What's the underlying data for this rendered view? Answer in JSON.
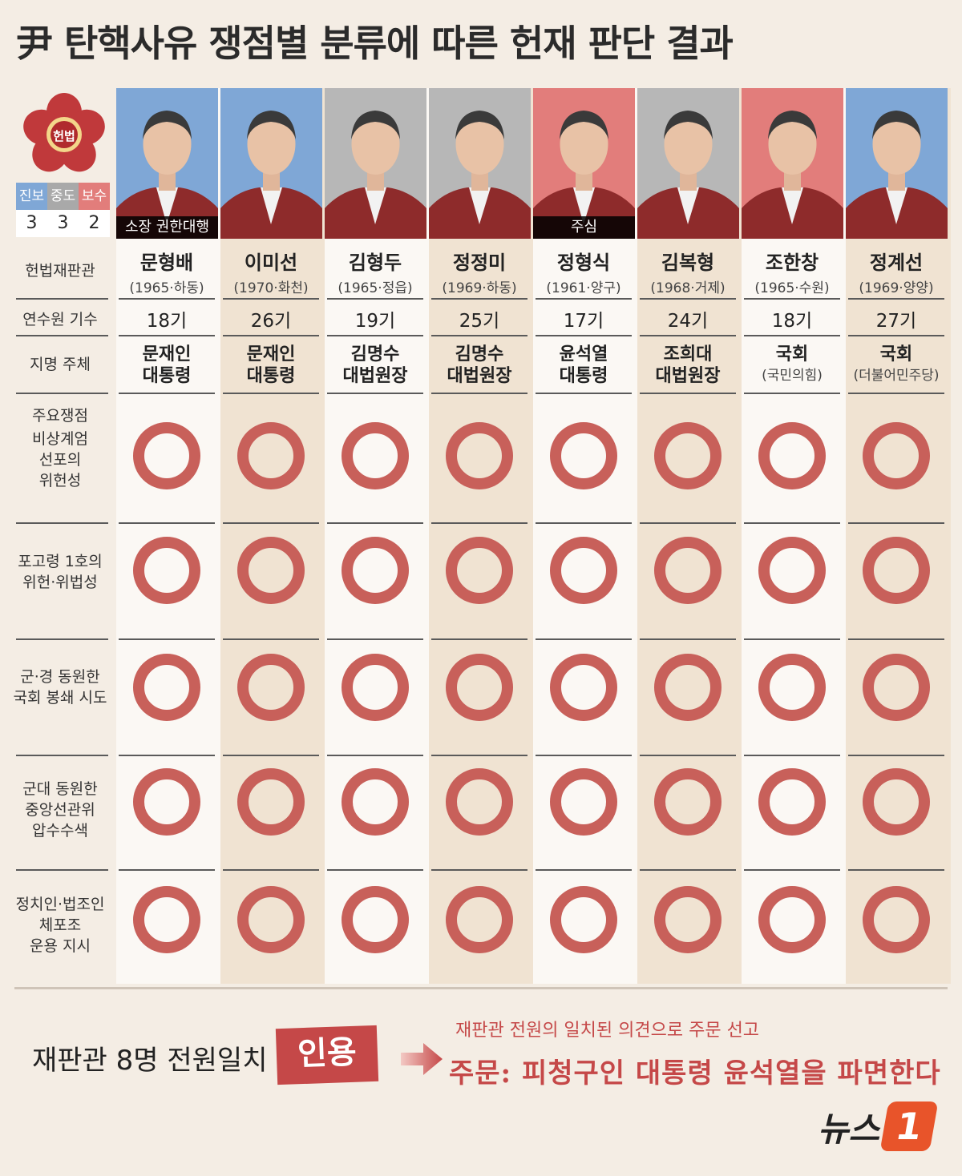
{
  "title": "尹 탄핵사유 쟁점별 분류에 따른 헌재 판단 결과",
  "emblem_text": "헌법",
  "legend": {
    "labels": [
      "진보",
      "중도",
      "보수"
    ],
    "counts": [
      "3",
      "3",
      "2"
    ],
    "colors": [
      "#7fa7d6",
      "#a9a9a9",
      "#e27d7b"
    ]
  },
  "row_labels": {
    "justice": "헌법재판관",
    "term": "연수원 기수",
    "appointer": "지명 주체",
    "issues_header": "주요쟁점"
  },
  "issues": [
    {
      "label": "비상계엄\n선포의\n위헌성"
    },
    {
      "label": "포고령 1호의\n위헌·위법성"
    },
    {
      "label": "군·경 동원한\n국회 봉쇄 시도"
    },
    {
      "label": "군대 동원한\n중앙선관위\n압수수색"
    },
    {
      "label": "정치인·법조인\n체포조\n운용 지시"
    }
  ],
  "justices": [
    {
      "name": "문형배",
      "info": "(1965·하동)",
      "term": "18기",
      "appointer": "문재인",
      "appointer2": "대통령",
      "caption": "소장 권한대행",
      "leaning_color": "#7fa7d6"
    },
    {
      "name": "이미선",
      "info": "(1970·화천)",
      "term": "26기",
      "appointer": "문재인",
      "appointer2": "대통령",
      "caption": "",
      "leaning_color": "#7fa7d6"
    },
    {
      "name": "김형두",
      "info": "(1965·정읍)",
      "term": "19기",
      "appointer": "김명수",
      "appointer2": "대법원장",
      "caption": "",
      "leaning_color": "#b7b7b7"
    },
    {
      "name": "정정미",
      "info": "(1969·하동)",
      "term": "25기",
      "appointer": "김명수",
      "appointer2": "대법원장",
      "caption": "",
      "leaning_color": "#b7b7b7"
    },
    {
      "name": "정형식",
      "info": "(1961·양구)",
      "term": "17기",
      "appointer": "윤석열",
      "appointer2": "대통령",
      "caption": "주심",
      "leaning_color": "#e27d7b"
    },
    {
      "name": "김복형",
      "info": "(1968·거제)",
      "term": "24기",
      "appointer": "조희대",
      "appointer2": "대법원장",
      "caption": "",
      "leaning_color": "#b7b7b7"
    },
    {
      "name": "조한창",
      "info": "(1965·수원)",
      "term": "18기",
      "appointer": "국회",
      "appointer2": "(국민의힘)",
      "caption": "",
      "leaning_color": "#e27d7b"
    },
    {
      "name": "정계선",
      "info": "(1969·양양)",
      "term": "27기",
      "appointer": "국회",
      "appointer2": "(더불어민주당)",
      "caption": "",
      "leaning_color": "#7fa7d6"
    }
  ],
  "verdict_mark": "O",
  "footer": {
    "unanimous": "재판관 8명 전원일치",
    "stamp": "인용",
    "note": "재판관 전원의 일치된 의견으로 주문 선고",
    "ruling": "주문: 피청구인 대통령 윤석열을 파면한다"
  },
  "logo": {
    "text": "뉴스",
    "number": "1"
  },
  "colors": {
    "ring": "#c8605a",
    "accent": "#c54848"
  }
}
